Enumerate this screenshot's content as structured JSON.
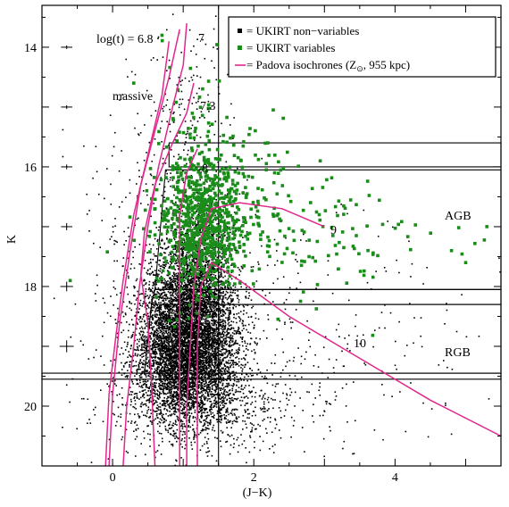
{
  "chart_data": {
    "type": "scatter",
    "xlabel": "(J−K)",
    "ylabel": "K",
    "xlim": [
      -1.0,
      5.5
    ],
    "ylim": [
      21.0,
      13.3
    ],
    "y_inverted": true,
    "xticks": [
      0,
      2,
      4
    ],
    "yticks": [
      14,
      16,
      18,
      20
    ],
    "grid": false,
    "legend_position": "top-right",
    "colors": {
      "non_variables": "#000000",
      "variables": "#1a8c1a",
      "isochrones": "#e0288c",
      "boxes": "#000000"
    },
    "legend": [
      {
        "marker": "black-square",
        "text": "= UKIRT non−variables"
      },
      {
        "marker": "green-square",
        "text": "= UKIRT variables"
      },
      {
        "marker": "magenta-line",
        "text": "= Padova isochrones (Z",
        "sub": "⊙",
        "text2": ", 955 kpc)"
      }
    ],
    "annotations": {
      "log_t": "log(t) = 6.8",
      "label_7": "7",
      "label_73": "7.3",
      "label_8": "8",
      "label_9": "9",
      "label_10": "10",
      "massive": "massive",
      "agb": "AGB",
      "rgb": "RGB"
    },
    "series": [
      {
        "name": "UKIRT non−variables",
        "kind": "density",
        "regions": [
          {
            "center": [
              1.05,
              19.1
            ],
            "spread": [
              0.35,
              0.55
            ],
            "count": 5200
          },
          {
            "center": [
              1.15,
              18.2
            ],
            "spread": [
              0.3,
              0.45
            ],
            "count": 1800
          },
          {
            "center": [
              1.2,
              17.3
            ],
            "spread": [
              0.25,
              0.5
            ],
            "count": 700
          },
          {
            "center": [
              1.35,
              20.0
            ],
            "spread": [
              0.7,
              0.4
            ],
            "count": 700
          },
          {
            "center": [
              0.4,
              17.5
            ],
            "spread": [
              0.4,
              1.8
            ],
            "count": 280
          },
          {
            "center": [
              2.5,
              18.8
            ],
            "spread": [
              1.3,
              0.9
            ],
            "count": 320
          },
          {
            "center": [
              1.1,
              15.2
            ],
            "spread": [
              0.3,
              0.9
            ],
            "count": 170
          }
        ]
      },
      {
        "name": "UKIRT variables",
        "kind": "density",
        "regions": [
          {
            "center": [
              1.25,
              17.0
            ],
            "spread": [
              0.3,
              0.55
            ],
            "count": 650
          },
          {
            "center": [
              1.6,
              16.4
            ],
            "spread": [
              0.45,
              0.5
            ],
            "count": 170
          },
          {
            "center": [
              2.6,
              17.0
            ],
            "spread": [
              0.9,
              0.55
            ],
            "count": 110
          },
          {
            "center": [
              4.3,
              17.2
            ],
            "spread": [
              0.7,
              0.35
            ],
            "count": 14
          },
          {
            "center": [
              1.2,
              15.0
            ],
            "spread": [
              0.3,
              0.6
            ],
            "count": 35
          }
        ],
        "points": [
          [
            5.3,
            17.0
          ],
          [
            5.0,
            17.6
          ],
          [
            4.8,
            17.4
          ],
          [
            -0.6,
            17.9
          ],
          [
            0.3,
            14.6
          ],
          [
            2.2,
            15.6
          ],
          [
            0.7,
            13.8
          ]
        ]
      }
    ],
    "isochrones": [
      {
        "label": "6.8",
        "points": [
          [
            0.8,
            13.9
          ],
          [
            0.7,
            14.8
          ],
          [
            0.5,
            15.8
          ],
          [
            0.3,
            16.8
          ],
          [
            0.15,
            17.9
          ],
          [
            0.05,
            18.8
          ],
          [
            -0.05,
            19.8
          ],
          [
            -0.1,
            21.0
          ]
        ]
      },
      {
        "label": "6.8b",
        "points": [
          [
            0.95,
            13.7
          ],
          [
            0.8,
            14.5
          ],
          [
            0.6,
            15.4
          ],
          [
            0.4,
            16.3
          ],
          [
            0.25,
            17.4
          ],
          [
            0.1,
            18.6
          ],
          [
            0.0,
            19.8
          ],
          [
            -0.05,
            21.0
          ]
        ]
      },
      {
        "label": "7",
        "points": [
          [
            1.05,
            13.6
          ],
          [
            1.0,
            14.3
          ],
          [
            0.85,
            15.0
          ],
          [
            0.65,
            16.0
          ],
          [
            0.5,
            17.0
          ],
          [
            0.38,
            18.0
          ],
          [
            0.3,
            19.0
          ],
          [
            0.2,
            20.0
          ],
          [
            0.15,
            21.0
          ]
        ]
      },
      {
        "label": "7.3",
        "points": [
          [
            1.15,
            14.6
          ],
          [
            1.05,
            15.1
          ],
          [
            0.85,
            15.6
          ],
          [
            0.6,
            16.3
          ],
          [
            0.45,
            17.1
          ],
          [
            0.4,
            17.8
          ],
          [
            0.5,
            18.6
          ],
          [
            0.55,
            19.6
          ],
          [
            0.6,
            21.0
          ]
        ]
      },
      {
        "label": "8",
        "points": [
          [
            1.2,
            15.7
          ],
          [
            1.05,
            16.1
          ],
          [
            0.95,
            16.8
          ],
          [
            0.95,
            17.6
          ],
          [
            0.95,
            18.5
          ],
          [
            0.95,
            19.6
          ],
          [
            0.95,
            21.0
          ]
        ]
      },
      {
        "label": "9",
        "points": [
          [
            3.0,
            17.0
          ],
          [
            2.4,
            16.7
          ],
          [
            1.8,
            16.6
          ],
          [
            1.4,
            16.7
          ],
          [
            1.25,
            17.2
          ],
          [
            1.15,
            18.0
          ],
          [
            1.1,
            19.0
          ],
          [
            1.05,
            20.0
          ],
          [
            1.05,
            21.0
          ]
        ]
      },
      {
        "label": "10",
        "points": [
          [
            5.5,
            20.5
          ],
          [
            4.5,
            19.9
          ],
          [
            3.5,
            19.2
          ],
          [
            2.5,
            18.5
          ],
          [
            1.8,
            17.9
          ],
          [
            1.4,
            17.6
          ],
          [
            1.25,
            18.0
          ],
          [
            1.2,
            19.0
          ],
          [
            1.2,
            20.0
          ],
          [
            1.2,
            21.0
          ]
        ]
      }
    ],
    "error_bars": [
      {
        "x": -0.65,
        "y": 14.0,
        "xerr": 0.08,
        "yerr": 0.02
      },
      {
        "x": -0.65,
        "y": 15.0,
        "xerr": 0.08,
        "yerr": 0.03
      },
      {
        "x": -0.65,
        "y": 16.0,
        "xerr": 0.08,
        "yerr": 0.04
      },
      {
        "x": -0.65,
        "y": 17.0,
        "xerr": 0.08,
        "yerr": 0.06
      },
      {
        "x": -0.65,
        "y": 18.0,
        "xerr": 0.09,
        "yerr": 0.08
      },
      {
        "x": -0.65,
        "y": 19.0,
        "xerr": 0.1,
        "yerr": 0.1
      }
    ],
    "reference_lines": {
      "vertical_x": 1.5
    },
    "boxes": [
      {
        "name": "upper-band",
        "polygon": [
          [
            0.8,
            15.6
          ],
          [
            5.5,
            15.6
          ],
          [
            5.5,
            16.0
          ],
          [
            0.8,
            16.0
          ]
        ]
      },
      {
        "name": "agb-box",
        "polygon": [
          [
            0.75,
            16.05
          ],
          [
            5.5,
            16.05
          ],
          [
            5.5,
            18.05
          ],
          [
            0.6,
            18.05
          ]
        ]
      },
      {
        "name": "mid-band",
        "polygon": [
          [
            0.6,
            18.05
          ],
          [
            5.5,
            18.05
          ],
          [
            5.5,
            18.3
          ],
          [
            0.55,
            18.3
          ]
        ]
      },
      {
        "name": "rgb-box",
        "polygon": [
          [
            0.55,
            18.3
          ],
          [
            5.5,
            18.3
          ],
          [
            5.5,
            19.45
          ],
          [
            0.45,
            19.45
          ]
        ]
      },
      {
        "name": "bottom-band",
        "polygon": [
          [
            -1.0,
            19.45
          ],
          [
            5.5,
            19.45
          ],
          [
            5.5,
            19.55
          ],
          [
            -1.0,
            19.55
          ]
        ]
      }
    ]
  }
}
